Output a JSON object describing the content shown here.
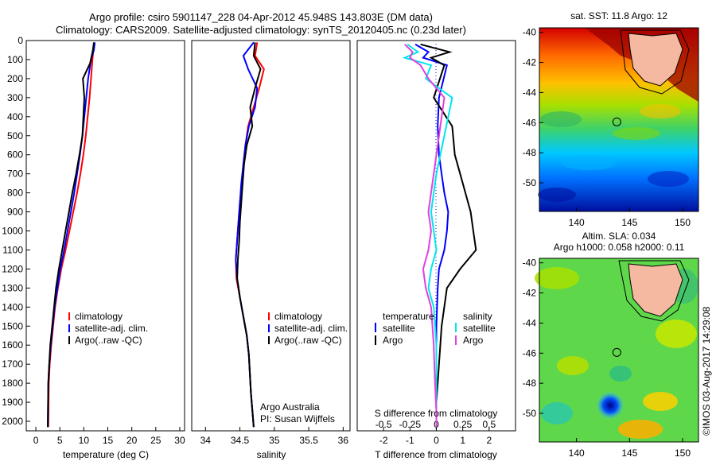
{
  "header": {
    "line1": "Argo profile: csiro 5901147_228 04-Apr-2012 45.948S 143.803E (DM data)",
    "line2": "Climatology: CARS2009. Satellite-adjusted climatology: synTS_20120405.nc (0.23d later)"
  },
  "depth_ticks": [
    "0",
    "100",
    "200",
    "300",
    "400",
    "500",
    "600",
    "700",
    "800",
    "900",
    "1000",
    "1100",
    "1200",
    "1300",
    "1400",
    "1500",
    "1600",
    "1700",
    "1800",
    "1900",
    "2000"
  ],
  "panels": {
    "temperature": {
      "xlabel": "temperature (deg C)",
      "xticks": [
        "0",
        "5",
        "10",
        "15",
        "20",
        "25",
        "30"
      ]
    },
    "salinity": {
      "xlabel": "salinity",
      "xticks": [
        "34",
        "34.5",
        "35",
        "35.5",
        "36"
      ],
      "note1": "Argo Australia",
      "note2": "PI: Susan Wijffels"
    },
    "difference": {
      "xlabel": "T difference from climatology",
      "xticks": [
        "-2",
        "-1",
        "0",
        "1",
        "2"
      ],
      "top_label": "S difference from climatology",
      "top_ticks": [
        "-0.5",
        "-0.25",
        "0",
        "0.25",
        "0.5"
      ]
    }
  },
  "legend": {
    "climatology": "climatology",
    "satellite": "satellite-adj. clim.",
    "argo": "Argo(..raw -QC)"
  },
  "diff_legend": {
    "temp_title": "temperature",
    "sal_title": "salinity",
    "satellite": "satellite",
    "argo": "Argo"
  },
  "maps": {
    "sst": {
      "title": "sat. SST: 11.8 Argo: 12"
    },
    "sla": {
      "title1": "Altim. SLA: 0.034",
      "title2": "Argo h1000: 0.058 h2000: 0.11"
    },
    "yticks": [
      "-40",
      "-42",
      "-44",
      "-46",
      "-48",
      "-50"
    ],
    "xticks": [
      "140",
      "145",
      "150"
    ],
    "marker": {
      "lon": 143.8,
      "lat": -45.95
    }
  },
  "stamp": "©IMOS 03-Aug-2017 14:29:08",
  "colors": {
    "climatology": "#ff0000",
    "satellite": "#0000ff",
    "argo": "#000000",
    "sat_s": "#00e5ee",
    "argo_s": "#e040e0",
    "land": "#f4b9a0"
  },
  "chart_data": [
    {
      "type": "line",
      "title": "",
      "xlabel": "temperature (deg C)",
      "ylabel": "",
      "xlim": [
        -2,
        31
      ],
      "ylim": [
        2050,
        0
      ],
      "series": [
        {
          "name": "climatology",
          "x": [
            12.2,
            12,
            11.8,
            11.5,
            11.2,
            10.8,
            10.4,
            9.9,
            9.3,
            8.6,
            7.8,
            7,
            6.2,
            5.3,
            4.6,
            4,
            3.6,
            3.2,
            2.9,
            2.7,
            2.6
          ],
          "y": [
            10,
            50,
            100,
            200,
            300,
            400,
            500,
            600,
            700,
            800,
            900,
            1000,
            1100,
            1200,
            1300,
            1400,
            1500,
            1600,
            1700,
            1800,
            2030
          ]
        },
        {
          "name": "satellite-adj. clim.",
          "x": [
            12.3,
            12.1,
            11.5,
            10.9,
            10.5,
            10.1,
            9.7,
            9.2,
            8.6,
            8,
            7.3,
            6.6,
            5.9,
            5.1,
            4.5,
            3.9,
            3.5,
            3.1,
            2.8,
            2.6,
            2.5
          ],
          "y": [
            10,
            50,
            100,
            200,
            300,
            400,
            500,
            600,
            700,
            800,
            900,
            1000,
            1100,
            1200,
            1300,
            1400,
            1500,
            1600,
            1700,
            1800,
            2030
          ]
        },
        {
          "name": "Argo(..raw -QC)",
          "x": [
            12.1,
            11.9,
            11.3,
            9.8,
            10.1,
            9.9,
            9.7,
            9.1,
            8.4,
            7.6,
            6.9,
            6.2,
            5.5,
            4.8,
            4.2,
            3.8,
            3.4,
            3,
            2.8,
            2.6,
            2.5
          ],
          "y": [
            10,
            50,
            120,
            200,
            300,
            400,
            500,
            600,
            700,
            800,
            900,
            1000,
            1100,
            1200,
            1300,
            1400,
            1500,
            1600,
            1700,
            1800,
            2030
          ]
        }
      ]
    },
    {
      "type": "line",
      "title": "",
      "xlabel": "salinity",
      "ylabel": "",
      "xlim": [
        33.8,
        36.1
      ],
      "ylim": [
        2050,
        0
      ],
      "series": [
        {
          "name": "climatology",
          "x": [
            34.75,
            34.72,
            34.85,
            34.78,
            34.7,
            34.62,
            34.58,
            34.55,
            34.53,
            34.5,
            34.48,
            34.46,
            34.44,
            34.45,
            34.5,
            34.55,
            34.6,
            34.63,
            34.66,
            34.7
          ],
          "y": [
            10,
            80,
            150,
            250,
            350,
            450,
            550,
            650,
            750,
            850,
            950,
            1050,
            1150,
            1250,
            1350,
            1450,
            1550,
            1650,
            1850,
            2030
          ]
        },
        {
          "name": "satellite-adj. clim.",
          "x": [
            34.7,
            34.55,
            34.62,
            34.75,
            34.72,
            34.63,
            34.58,
            34.55,
            34.52,
            34.5,
            34.48,
            34.46,
            34.44,
            34.46,
            34.5,
            34.55,
            34.6,
            34.63,
            34.66,
            34.7
          ],
          "y": [
            10,
            80,
            150,
            250,
            350,
            450,
            550,
            650,
            750,
            850,
            950,
            1050,
            1150,
            1250,
            1350,
            1450,
            1550,
            1650,
            1850,
            2030
          ]
        },
        {
          "name": "Argo(..raw -QC)",
          "x": [
            34.72,
            34.7,
            34.8,
            34.72,
            34.65,
            34.68,
            34.6,
            34.56,
            34.54,
            34.52,
            34.5,
            34.49,
            34.47,
            34.46,
            34.5,
            34.55,
            34.6,
            34.63,
            34.66,
            34.7
          ],
          "y": [
            10,
            80,
            150,
            250,
            350,
            450,
            550,
            650,
            750,
            850,
            950,
            1050,
            1150,
            1250,
            1350,
            1450,
            1550,
            1650,
            1850,
            2030
          ]
        }
      ]
    },
    {
      "type": "line",
      "title": "",
      "xlabel": "T difference from climatology",
      "ylabel": "",
      "xlim": [
        -3,
        3
      ],
      "ylim": [
        2050,
        0
      ],
      "series": [
        {
          "name": "temperature satellite",
          "x": [
            -0.8,
            -0.3,
            -0.5,
            0.4,
            0.1,
            0.05,
            0.1,
            0.2,
            0.3,
            0.45,
            0.4,
            0.3,
            0.1,
            0.05,
            0.0,
            0.0,
            0.0,
            0.0,
            0.0
          ],
          "y": [
            20,
            60,
            90,
            130,
            300,
            450,
            600,
            700,
            800,
            900,
            1000,
            1100,
            1200,
            1300,
            1500,
            1700,
            1800,
            1900,
            2030
          ]
        },
        {
          "name": "temperature Argo",
          "x": [
            -0.6,
            0.5,
            -0.2,
            0.3,
            -0.1,
            0.6,
            0.7,
            0.9,
            1.1,
            1.3,
            1.4,
            1.5,
            0.9,
            0.4,
            0.2,
            0.1,
            0.05,
            0.0,
            0.0
          ],
          "y": [
            20,
            60,
            90,
            130,
            300,
            450,
            600,
            700,
            800,
            900,
            1000,
            1100,
            1200,
            1300,
            1500,
            1700,
            1800,
            1900,
            2030
          ]
        },
        {
          "name": "salinity satellite",
          "x": [
            -1.1,
            -0.7,
            -1.2,
            -0.2,
            -0.4,
            0.6,
            0.3,
            0.0,
            -0.2,
            -0.1,
            0.0,
            -0.2,
            -0.3,
            -0.1,
            0.0,
            0.0,
            0.0,
            0.0
          ],
          "y": [
            20,
            60,
            90,
            130,
            200,
            300,
            500,
            700,
            900,
            1000,
            1100,
            1200,
            1300,
            1400,
            1600,
            1800,
            1950,
            2030
          ]
        },
        {
          "name": "salinity Argo",
          "x": [
            -1.2,
            -0.9,
            -1.0,
            -0.6,
            -0.3,
            0.3,
            0.1,
            -0.1,
            -0.3,
            -0.2,
            -0.3,
            -0.5,
            -0.4,
            -0.2,
            -0.1,
            -0.05,
            0.0,
            0.0
          ],
          "y": [
            20,
            60,
            90,
            130,
            200,
            300,
            500,
            700,
            900,
            1000,
            1100,
            1200,
            1300,
            1400,
            1600,
            1800,
            1950,
            2030
          ]
        }
      ]
    }
  ]
}
